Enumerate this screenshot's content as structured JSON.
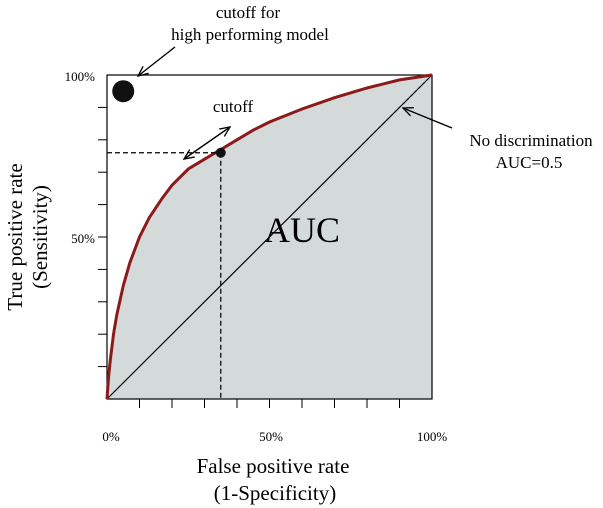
{
  "chart_data": {
    "type": "line",
    "x_axis": {
      "title_line1": "False positive rate",
      "title_line2": "(1-Specificity)",
      "tick_labels": [
        "0%",
        "50%",
        "100%"
      ],
      "range": [
        0,
        100
      ],
      "minor_ticks_every": 10
    },
    "y_axis": {
      "title_line1": "True positive rate",
      "title_line2": "(Sensitivity)",
      "tick_labels": [
        "50%",
        "100%"
      ],
      "range": [
        0,
        100
      ],
      "minor_ticks_every": 10
    },
    "series": [
      {
        "role": "roc-curve",
        "color": "#8b1a1a",
        "points": [
          [
            0,
            0
          ],
          [
            0.5,
            7
          ],
          [
            1,
            12
          ],
          [
            2,
            20
          ],
          [
            3,
            26
          ],
          [
            5,
            35
          ],
          [
            7,
            42
          ],
          [
            10,
            50
          ],
          [
            13,
            56
          ],
          [
            17,
            62
          ],
          [
            20,
            66
          ],
          [
            25,
            71
          ],
          [
            30,
            74
          ],
          [
            35,
            77
          ],
          [
            40,
            80
          ],
          [
            45,
            83
          ],
          [
            50,
            85.5
          ],
          [
            60,
            89.5
          ],
          [
            70,
            93
          ],
          [
            80,
            96
          ],
          [
            90,
            98.5
          ],
          [
            100,
            100
          ]
        ]
      },
      {
        "role": "diagonal",
        "color": "#000000",
        "points": [
          [
            0,
            0
          ],
          [
            100,
            100
          ]
        ]
      }
    ],
    "auc_fill_color": "#d4d9d9",
    "cutoff_point": {
      "x": 35,
      "y": 76
    },
    "high_performing_point": {
      "x": 5,
      "y": 95
    }
  },
  "annotations": {
    "auc_label": "AUC",
    "cutoff_label": "cutoff",
    "high_cutoff_line1": "cutoff for",
    "high_cutoff_line2": "high performing model",
    "no_disc_line1": "No discrimination",
    "no_disc_line2": "AUC=0.5"
  }
}
